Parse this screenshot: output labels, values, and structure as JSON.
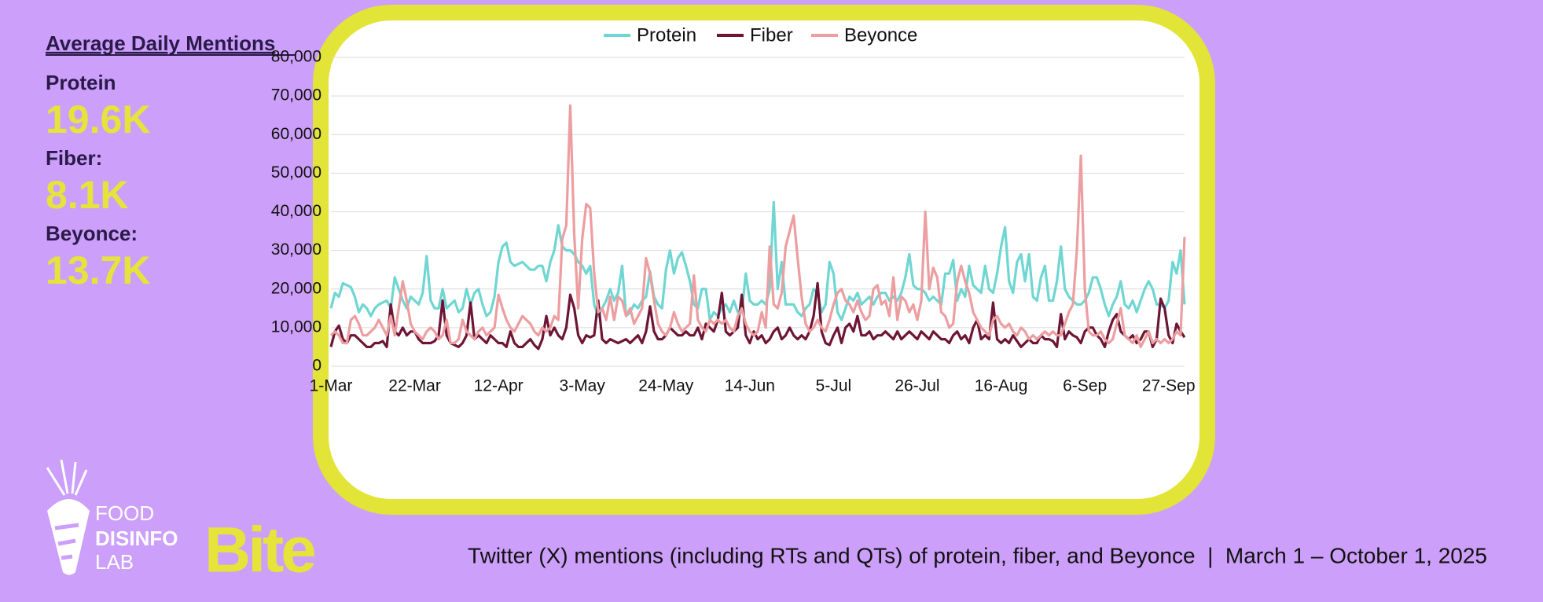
{
  "summary": {
    "title": "Average Daily Mentions",
    "items": [
      {
        "label": "Protein",
        "value": "19.6K"
      },
      {
        "label": "Fiber:",
        "value": "8.1K"
      },
      {
        "label": "Beyonce:",
        "value": "13.7K"
      }
    ]
  },
  "logo": {
    "lines": [
      "FOOD",
      "DISINFO",
      "LAB"
    ],
    "brand": "Bite"
  },
  "caption": "Twitter (X) mentions (including RTs and QTs) of protein, fiber, and Beyonce  |  March 1 – October 1, 2025",
  "chart_data": {
    "type": "line",
    "grid": true,
    "legend": "top",
    "categories": [
      "1-Mar",
      null,
      null,
      null,
      null,
      null,
      null,
      null,
      null,
      null,
      null,
      null,
      null,
      null,
      null,
      null,
      null,
      null,
      null,
      null,
      null,
      "22-Mar",
      null,
      null,
      null,
      null,
      null,
      null,
      null,
      null,
      null,
      null,
      null,
      null,
      null,
      null,
      null,
      null,
      null,
      null,
      null,
      null,
      "12-Apr",
      null,
      null,
      null,
      null,
      null,
      null,
      null,
      null,
      null,
      null,
      null,
      null,
      null,
      null,
      null,
      null,
      null,
      null,
      null,
      null,
      "3-May",
      null,
      null,
      null,
      null,
      null,
      null,
      null,
      null,
      null,
      null,
      null,
      null,
      null,
      null,
      null,
      null,
      null,
      null,
      null,
      null,
      "24-May",
      null,
      null,
      null,
      null,
      null,
      null,
      null,
      null,
      null,
      null,
      null,
      null,
      null,
      null,
      null,
      null,
      null,
      null,
      null,
      null,
      "14-Jun",
      null,
      null,
      null,
      null,
      null,
      null,
      null,
      null,
      null,
      null,
      null,
      null,
      null,
      null,
      null,
      null,
      null,
      null,
      null,
      null,
      "5-Jul",
      null,
      null,
      null,
      null,
      null,
      null,
      null,
      null,
      null,
      null,
      null,
      null,
      null,
      null,
      null,
      null,
      null,
      null,
      null,
      null,
      "26-Jul",
      null,
      null,
      null,
      null,
      null,
      null,
      null,
      null,
      null,
      null,
      null,
      null,
      null,
      null,
      null,
      null,
      null,
      null,
      null,
      null,
      "16-Aug",
      null,
      null,
      null,
      null,
      null,
      null,
      null,
      null,
      null,
      null,
      null,
      null,
      null,
      null,
      null,
      null,
      null,
      null,
      null,
      null,
      "6-Sep",
      null,
      null,
      null,
      null,
      null,
      null,
      null,
      null,
      null,
      null,
      null,
      null,
      null,
      null,
      null,
      null,
      null,
      null,
      null,
      null,
      "27-Sep",
      null,
      null,
      null,
      null
    ],
    "ylim": [
      0,
      80000
    ],
    "yticks": [
      0,
      {
        "value": 10000,
        "label": "10,000"
      },
      {
        "value": 20000,
        "label": "20,000"
      },
      {
        "value": 30000,
        "label": "30,000"
      },
      {
        "value": 40000,
        "label": "40,000"
      },
      {
        "value": 50000,
        "label": "50,000"
      },
      {
        "value": 60000,
        "label": "60,000"
      },
      {
        "value": 70000,
        "label": "70,000"
      },
      {
        "value": 80000,
        "label": "80,000"
      }
    ],
    "series": [
      {
        "name": "Protein",
        "color": "#6fd6d2",
        "values": [
          15000,
          19000,
          18000,
          21500,
          21000,
          20500,
          18000,
          14000,
          16000,
          15000,
          13000,
          15000,
          16000,
          16500,
          17000,
          15000,
          23000,
          20000,
          17000,
          15000,
          18000,
          17000,
          16000,
          19000,
          28500,
          17000,
          15000,
          15000,
          20000,
          15000,
          16000,
          17000,
          14000,
          15000,
          20000,
          16000,
          19000,
          20000,
          16000,
          13000,
          14000,
          18000,
          27000,
          31000,
          32000,
          27000,
          26000,
          26500,
          27000,
          26000,
          25000,
          25000,
          26000,
          26000,
          22000,
          27000,
          30000,
          36500,
          31000,
          30000,
          30000,
          29000,
          27000,
          26000,
          24000,
          26000,
          16000,
          13000,
          15000,
          17000,
          20000,
          17000,
          19000,
          26000,
          13000,
          14000,
          16000,
          15000,
          17000,
          18000,
          24500,
          18000,
          16000,
          15000,
          25000,
          30000,
          24000,
          28000,
          29500,
          26000,
          22000,
          16000,
          15000,
          20000,
          20000,
          12000,
          14000,
          13000,
          15000,
          16000,
          14000,
          17000,
          14000,
          14000,
          24000,
          17000,
          16000,
          16000,
          17000,
          16000,
          20000,
          42500,
          20000,
          27000,
          16000,
          16000,
          16000,
          14000,
          13000,
          15000,
          16000,
          20000,
          19000,
          14000,
          16000,
          27000,
          24000,
          14000,
          12000,
          15000,
          18000,
          17000,
          19000,
          16000,
          17000,
          18000,
          16000,
          18000,
          19000,
          19000,
          17000,
          18000,
          17000,
          19000,
          23000,
          29000,
          21000,
          20000,
          20000,
          19000,
          17000,
          18000,
          17000,
          16000,
          24000,
          24000,
          27500,
          17000,
          20000,
          18000,
          26000,
          21000,
          20000,
          19000,
          26000,
          20000,
          19000,
          24000,
          31000,
          36000,
          22000,
          19000,
          27000,
          29000,
          22000,
          29000,
          18000,
          17000,
          23000,
          26000,
          17000,
          17000,
          22000,
          31000,
          20000,
          18000,
          17000,
          16000,
          16000,
          17000,
          19000,
          23000,
          23000,
          20000,
          16000,
          13000,
          16000,
          18000,
          22000,
          16000,
          15000,
          17000,
          14000,
          17000,
          20000,
          22000,
          20000,
          16000,
          16000,
          15000,
          17000,
          27000,
          24000,
          30000,
          16000
        ]
      },
      {
        "name": "Fiber",
        "color": "#6e1535",
        "values": [
          5000,
          9000,
          10500,
          7000,
          6000,
          8000,
          8000,
          7000,
          6000,
          5000,
          5000,
          6000,
          6000,
          6500,
          5000,
          16000,
          9000,
          8000,
          10000,
          8000,
          9000,
          9000,
          7000,
          6000,
          6000,
          6000,
          6500,
          8000,
          17000,
          8000,
          6000,
          5500,
          5000,
          6000,
          8000,
          16500,
          7000,
          8000,
          7000,
          6000,
          8000,
          7000,
          6000,
          6000,
          5000,
          9000,
          6000,
          5000,
          5000,
          6000,
          7000,
          5500,
          4500,
          7000,
          13000,
          8000,
          10000,
          8000,
          7000,
          10000,
          18500,
          15000,
          8000,
          6000,
          8000,
          7500,
          8000,
          17000,
          7000,
          6000,
          7000,
          6500,
          6000,
          6500,
          7000,
          6000,
          7000,
          8000,
          6000,
          9000,
          15500,
          9000,
          7000,
          7000,
          8000,
          10000,
          9000,
          8000,
          8000,
          9000,
          8000,
          8000,
          10000,
          7000,
          11000,
          10000,
          9000,
          12000,
          19000,
          9000,
          8000,
          9000,
          10000,
          18500,
          8000,
          6000,
          9000,
          7000,
          8000,
          6000,
          7000,
          9000,
          10000,
          7000,
          8000,
          10000,
          8000,
          7000,
          8000,
          7000,
          9000,
          13000,
          21500,
          9000,
          6000,
          5500,
          8000,
          10000,
          6000,
          10000,
          11000,
          9000,
          13000,
          8000,
          8000,
          9000,
          7000,
          8000,
          8000,
          9000,
          8000,
          7000,
          9000,
          7000,
          8000,
          9000,
          8000,
          7000,
          9000,
          8000,
          7000,
          9000,
          8000,
          7000,
          7000,
          6000,
          8000,
          9000,
          7000,
          8000,
          6000,
          10000,
          12000,
          7000,
          8000,
          7000,
          16500,
          7000,
          6000,
          7000,
          6000,
          8000,
          6500,
          5000,
          6000,
          7000,
          6000,
          6000,
          8000,
          7000,
          7000,
          6500,
          5000,
          13500,
          7000,
          9000,
          8000,
          7500,
          6000,
          9000,
          10000,
          10000,
          8000,
          7000,
          5000,
          9000,
          12000,
          13500,
          9000,
          8000,
          7000,
          8000,
          6000,
          7000,
          9000,
          9000,
          5000,
          7000,
          17500,
          15000,
          8000,
          6000,
          11000,
          9000,
          7500
        ]
      },
      {
        "name": "Beyonce",
        "color": "#ec9ea0",
        "values": [
          8000,
          9000,
          8000,
          6000,
          6000,
          12000,
          13000,
          11000,
          8000,
          8000,
          9000,
          10000,
          12000,
          10000,
          8000,
          13000,
          8000,
          15000,
          22000,
          17000,
          11000,
          9000,
          8000,
          7000,
          9000,
          10000,
          9000,
          7000,
          8000,
          12000,
          6000,
          6000,
          7000,
          12000,
          9000,
          8000,
          7000,
          9000,
          10000,
          8000,
          9000,
          10000,
          18500,
          15000,
          12000,
          10000,
          9000,
          11000,
          13000,
          12000,
          11000,
          9000,
          8000,
          10000,
          9000,
          10000,
          13000,
          12000,
          33000,
          36500,
          67500,
          34000,
          15000,
          33000,
          42000,
          41000,
          24000,
          14000,
          15000,
          12000,
          18000,
          12000,
          18000,
          17000,
          13000,
          15000,
          11000,
          13000,
          15000,
          28000,
          24000,
          17000,
          11000,
          9000,
          8000,
          10000,
          14000,
          11000,
          9000,
          10000,
          11000,
          23500,
          12000,
          10000,
          9000,
          12000,
          11000,
          12000,
          11000,
          12000,
          10000,
          9000,
          13000,
          15000,
          11000,
          9000,
          8000,
          9000,
          14000,
          10000,
          31000,
          16000,
          15000,
          19000,
          31000,
          35000,
          39000,
          28000,
          18000,
          11000,
          9000,
          10000,
          12000,
          10000,
          9000,
          12000,
          16000,
          19000,
          20000,
          17000,
          16000,
          14000,
          17000,
          14000,
          12000,
          13000,
          20000,
          21000,
          16000,
          17000,
          13000,
          23000,
          12000,
          18000,
          17000,
          14000,
          16000,
          12000,
          17000,
          40000,
          20000,
          25500,
          23000,
          14000,
          13000,
          10000,
          11000,
          22000,
          26000,
          22000,
          19000,
          14000,
          12000,
          10000,
          9000,
          8000,
          12000,
          13000,
          11000,
          10000,
          11000,
          9000,
          8000,
          10000,
          9000,
          7000,
          8000,
          7000,
          8000,
          9000,
          8000,
          9000,
          8000,
          8000,
          11000,
          14000,
          16000,
          30000,
          54500,
          20000,
          9000,
          8000,
          8000,
          9000,
          7000,
          6000,
          7000,
          11000,
          15000,
          8000,
          7000,
          6000,
          8000,
          5000,
          7000,
          9000,
          6000,
          7000,
          6000,
          7000,
          6000,
          7000,
          9000,
          8000,
          33500
        ]
      }
    ]
  }
}
